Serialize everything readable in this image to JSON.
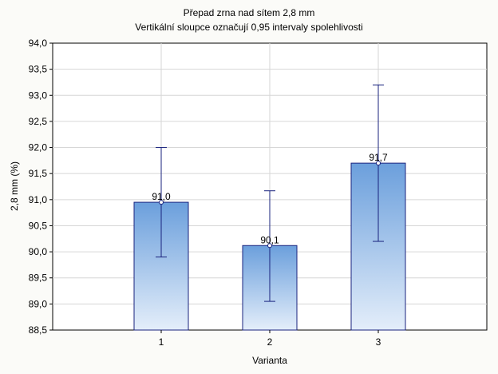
{
  "chart_data": {
    "type": "bar",
    "title": "Přepad zrna nad sítem 2,8 mm",
    "subtitle": "Vertikální sloupce označují 0,95 intervaly spolehlivosti",
    "xlabel": "Varianta",
    "ylabel": "2,8 mm (%)",
    "categories": [
      "1",
      "2",
      "3"
    ],
    "values": [
      90.95,
      90.12,
      91.7
    ],
    "value_labels": [
      "91,0",
      "90,1",
      "91,7"
    ],
    "error_low": [
      89.9,
      89.05,
      90.2
    ],
    "error_high": [
      92.0,
      91.17,
      93.2
    ],
    "ylim": [
      88.5,
      94.0
    ],
    "yticks": [
      88.5,
      89.0,
      89.5,
      90.0,
      90.5,
      91.0,
      91.5,
      92.0,
      92.5,
      93.0,
      93.5,
      94.0
    ],
    "ytick_labels": [
      "88,5",
      "89,0",
      "89,5",
      "90,0",
      "90,5",
      "91,0",
      "91,5",
      "92,0",
      "92,5",
      "93,0",
      "93,5",
      "94,0"
    ],
    "grid": true,
    "colors": {
      "bar_top": "#6b9fdc",
      "bar_bottom": "#e4eefa",
      "bar_stroke": "#1a237e",
      "error_bar": "#1a237e",
      "grid": "#d6d6d6",
      "plot_bg": "#ffffff"
    }
  }
}
